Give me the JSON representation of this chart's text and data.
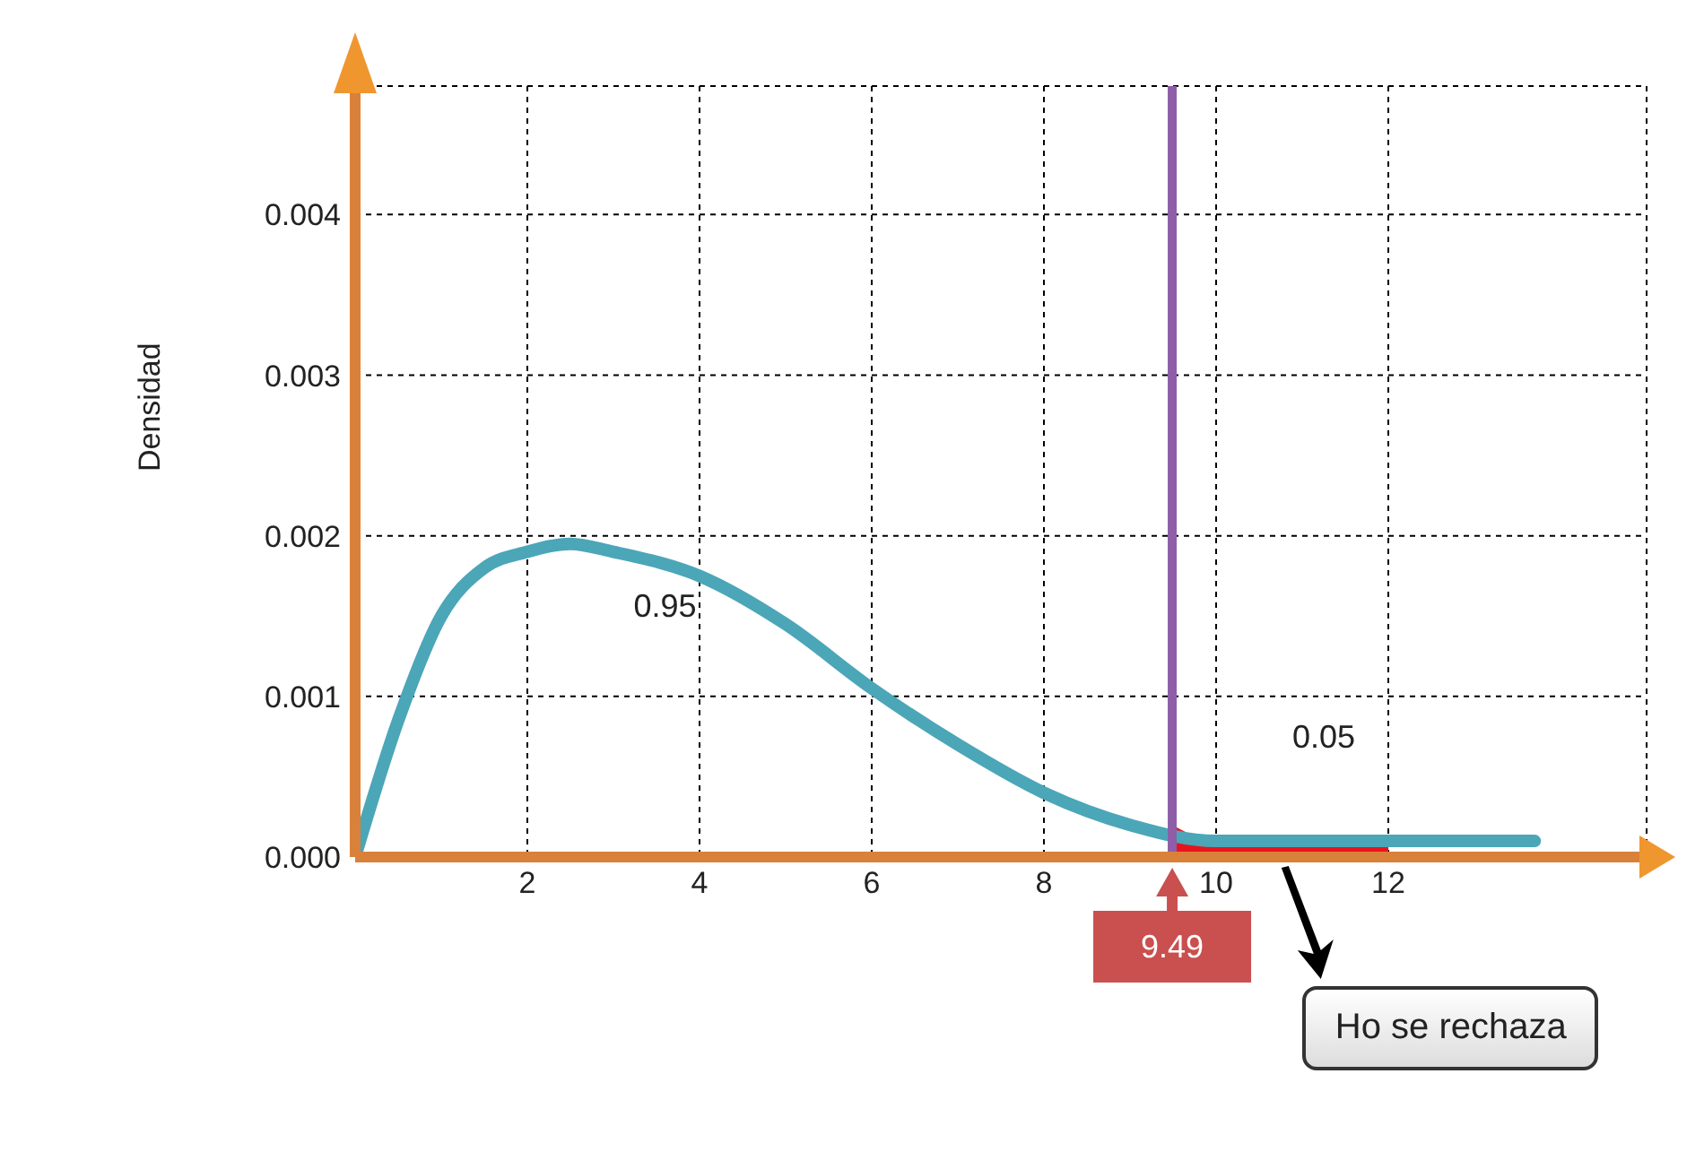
{
  "chart_data": {
    "type": "line",
    "ylabel": "Densidad",
    "xlim": [
      0,
      15
    ],
    "xticks": [
      2,
      4,
      6,
      8,
      10,
      12
    ],
    "ylim": [
      0,
      0.0048
    ],
    "yticks": [
      {
        "value": 0,
        "label": "0.000"
      },
      {
        "value": 0.001,
        "label": "0.001"
      },
      {
        "value": 0.002,
        "label": "0.002"
      },
      {
        "value": 0.003,
        "label": "0.003"
      },
      {
        "value": 0.004,
        "label": "0.004"
      }
    ],
    "grid": true,
    "series": [
      {
        "color": "#4ba6b8",
        "x": [
          0,
          0.5,
          1,
          1.5,
          2,
          2.5,
          3,
          4,
          5,
          6,
          7,
          8,
          9,
          10,
          11,
          12,
          13,
          13.7
        ],
        "values": [
          0,
          0.00085,
          0.0015,
          0.0018,
          0.0019,
          0.00195,
          0.0019,
          0.00175,
          0.00145,
          0.00105,
          0.0007,
          0.0004,
          0.0002,
          0.0001,
          0.0001,
          0.0001,
          0.0001,
          0.0001
        ]
      },
      {
        "type": "area",
        "color": "#e8141c",
        "x": [
          9.49,
          10,
          11,
          12
        ],
        "values": [
          0.0002,
          0.0001,
          0.0001,
          0.0001
        ]
      }
    ],
    "ref_lines": [
      {
        "axis": "x",
        "value": 9.49,
        "label": "9.49",
        "color": "#8e5ea8"
      }
    ],
    "annotations": [
      "0.95",
      "0.05",
      "Ho se rechaza"
    ]
  }
}
